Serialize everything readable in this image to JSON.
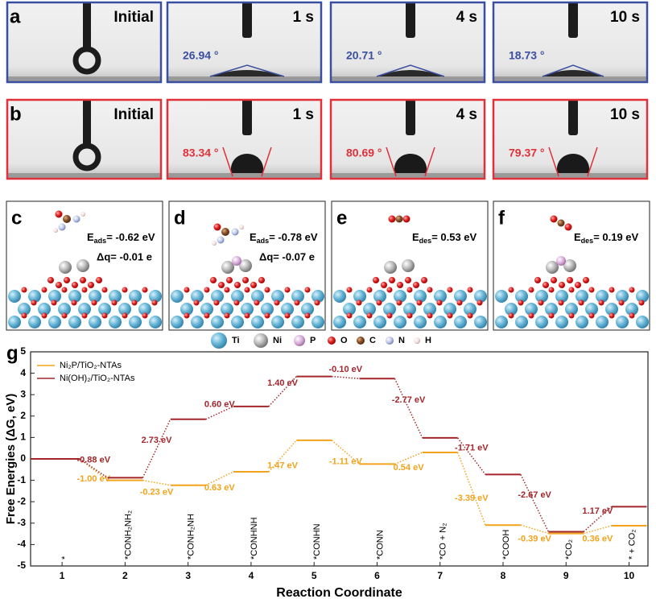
{
  "panel_a": {
    "label": "a",
    "color": "#3b4fa0",
    "frames": [
      {
        "time": "Initial"
      },
      {
        "time": "1 s",
        "angle": "26.94 °"
      },
      {
        "time": "4 s",
        "angle": "20.71 °"
      },
      {
        "time": "10 s",
        "angle": "18.73 °"
      }
    ]
  },
  "panel_b": {
    "label": "b",
    "color": "#e0303a",
    "frames": [
      {
        "time": "Initial"
      },
      {
        "time": "1 s",
        "angle": "83.34 °"
      },
      {
        "time": "4 s",
        "angle": "80.69 °"
      },
      {
        "time": "10 s",
        "angle": "79.37 °"
      }
    ]
  },
  "structures": [
    {
      "label": "c",
      "energy": {
        "symbol": "E",
        "sub": "ads",
        "text": "= -0.62 eV"
      },
      "charge": "Δq= -0.01 e"
    },
    {
      "label": "d",
      "energy": {
        "symbol": "E",
        "sub": "ads",
        "text": "= -0.78 eV"
      },
      "charge": "Δq= -0.07 e"
    },
    {
      "label": "e",
      "energy": {
        "symbol": "E",
        "sub": "des",
        "text": "= 0.53 eV"
      }
    },
    {
      "label": "f",
      "energy": {
        "symbol": "E",
        "sub": "des",
        "text": "= 0.19 eV"
      }
    }
  ],
  "atom_legend": [
    "Ti",
    "Ni",
    "P",
    "O",
    "C",
    "N",
    "H"
  ],
  "chart_data": {
    "type": "energy-profile",
    "panel_label": "g",
    "x_label": "Reaction Coordinate",
    "y_label": "Free Energies (ΔG, eV)",
    "x": [
      1,
      2,
      3,
      4,
      5,
      6,
      7,
      8,
      9,
      10
    ],
    "species": [
      "*",
      "*CONH₂NH₂",
      "*CONH₂NH",
      "*CONHNH",
      "*CONHN",
      "*CONN",
      "*CO + N₂",
      "*COOH",
      "*CO₂",
      "* + CO₂"
    ],
    "xlim": [
      0.5,
      10.3
    ],
    "xticks": [
      1,
      2,
      3,
      4,
      5,
      6,
      7,
      8,
      9,
      10
    ],
    "ylim": [
      -5,
      5
    ],
    "yticks": [
      -5,
      -4,
      -3,
      -2,
      -1,
      0,
      1,
      2,
      3,
      4,
      5
    ],
    "legend": "upper left",
    "series": [
      {
        "name": "Ni₂P/TiO₂-NTAs",
        "color": "#f2a31b",
        "values": [
          0,
          -1.0,
          -1.23,
          -0.6,
          0.87,
          -0.24,
          0.3,
          -3.09,
          -3.48,
          -3.12
        ],
        "step_labels": [
          "-1.00 eV",
          "-0.23 eV",
          "0.63 eV",
          "1.47 eV",
          "-1.11 eV",
          "0.54 eV",
          "-3.39 eV",
          "-0.39 eV",
          "0.36 eV"
        ]
      },
      {
        "name": "Ni(OH)₂/TiO₂-NTAs",
        "color": "#a3262b",
        "values": [
          0,
          -0.88,
          1.85,
          2.45,
          3.85,
          3.75,
          0.98,
          -0.73,
          -3.4,
          -2.23
        ],
        "step_labels": [
          "-0.88 eV",
          "2.73 eV",
          "0.60 eV",
          "1.40 eV",
          "-0.10 eV",
          "-2.77 eV",
          "-1.71 eV",
          "-2.67 eV",
          "1.17 eV"
        ]
      }
    ]
  }
}
